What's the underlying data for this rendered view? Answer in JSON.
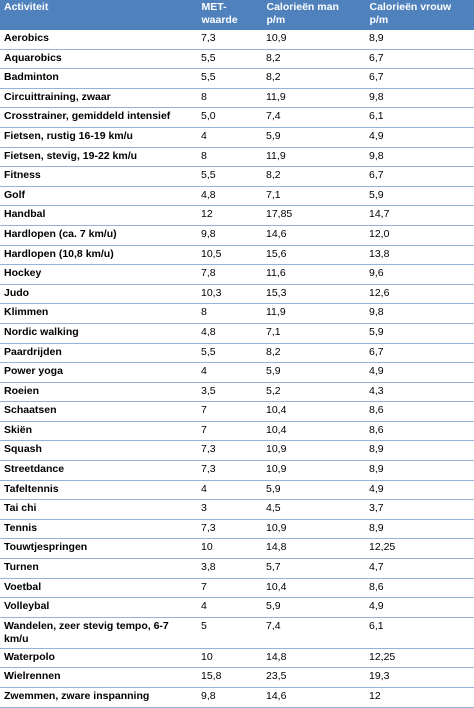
{
  "table": {
    "header": [
      "Activiteit",
      "MET-\nwaarde",
      "Calorieën man\np/m",
      "Calorieën vrouw\np/m"
    ],
    "rows": [
      [
        "Aerobics",
        "7,3",
        "10,9",
        "8,9"
      ],
      [
        "Aquarobics",
        "5,5",
        "8,2",
        "6,7"
      ],
      [
        "Badminton",
        "5,5",
        "8,2",
        "6,7"
      ],
      [
        "Circuittraining, zwaar",
        "8",
        "11,9",
        "9,8"
      ],
      [
        "Crosstrainer, gemiddeld intensief",
        "5,0",
        "7,4",
        "6,1"
      ],
      [
        "Fietsen, rustig 16-19 km/u",
        "4",
        "5,9",
        "4,9"
      ],
      [
        "Fietsen, stevig, 19-22 km/u",
        "8",
        "11,9",
        "9,8"
      ],
      [
        "Fitness",
        "5,5",
        "8,2",
        "6,7"
      ],
      [
        "Golf",
        "4,8",
        "7,1",
        "5,9"
      ],
      [
        "Handbal",
        "12",
        "17,85",
        "14,7"
      ],
      [
        "Hardlopen (ca. 7 km/u)",
        "9,8",
        "14,6",
        "12,0"
      ],
      [
        "Hardlopen (10,8 km/u)",
        "10,5",
        "15,6",
        "13,8"
      ],
      [
        "Hockey",
        "7,8",
        "11,6",
        "9,6"
      ],
      [
        "Judo",
        "10,3",
        "15,3",
        "12,6"
      ],
      [
        "Klimmen",
        "8",
        "11,9",
        "9,8"
      ],
      [
        "Nordic walking",
        "4,8",
        "7,1",
        "5,9"
      ],
      [
        "Paardrijden",
        "5,5",
        "8,2",
        "6,7"
      ],
      [
        "Power yoga",
        "4",
        "5,9",
        "4,9"
      ],
      [
        "Roeien",
        "3,5",
        "5,2",
        "4,3"
      ],
      [
        "Schaatsen",
        "7",
        "10,4",
        "8,6"
      ],
      [
        "Skiën",
        "7",
        "10,4",
        "8,6"
      ],
      [
        "Squash",
        "7,3",
        "10,9",
        "8,9"
      ],
      [
        "Streetdance",
        "7,3",
        "10,9",
        "8,9"
      ],
      [
        "Tafeltennis",
        "4",
        "5,9",
        "4,9"
      ],
      [
        "Tai chi",
        "3",
        "4,5",
        "3,7"
      ],
      [
        "Tennis",
        "7,3",
        "10,9",
        "8,9"
      ],
      [
        "Touwtjespringen",
        "10",
        "14,8",
        "12,25"
      ],
      [
        "Turnen",
        "3,8",
        "5,7",
        "4,7"
      ],
      [
        "Voetbal",
        "7",
        "10,4",
        "8,6"
      ],
      [
        "Volleybal",
        "4",
        "5,9",
        "4,9"
      ],
      [
        "Wandelen, zeer stevig tempo, 6-7\nkm/u",
        "5",
        "7,4",
        "6,1"
      ],
      [
        "Waterpolo",
        "10",
        "14,8",
        "12,25"
      ],
      [
        "Wielrennen",
        "15,8",
        "23,5",
        "19,3"
      ],
      [
        "Zwemmen, zware inspanning",
        "9,8",
        "14,6",
        "12"
      ]
    ]
  }
}
